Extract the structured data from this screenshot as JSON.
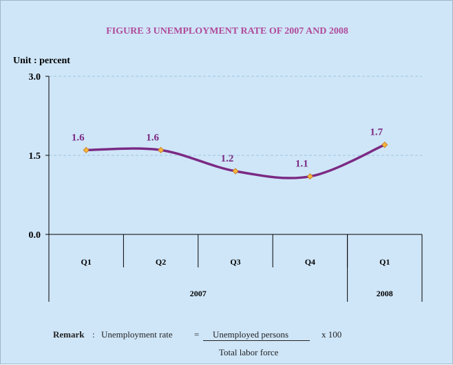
{
  "chart_data": {
    "type": "line",
    "title": "FIGURE 3 UNEMPLOYMENT RATE OF 2007 AND 2008",
    "unit_label": "Unit : percent",
    "categories": [
      "Q1",
      "Q2",
      "Q3",
      "Q4",
      "Q1"
    ],
    "groups": [
      {
        "label": "2007",
        "span": 4
      },
      {
        "label": "2008",
        "span": 1
      }
    ],
    "series": [
      {
        "values": [
          1.6,
          1.6,
          1.2,
          1.1,
          1.7
        ]
      }
    ],
    "data_labels": [
      "1.6",
      "1.6",
      "1.2",
      "1.1",
      "1.7"
    ],
    "y_ticks": [
      0.0,
      1.5,
      3.0
    ],
    "y_tick_labels": [
      "0.0",
      "1.5",
      "3.0"
    ],
    "ylim": [
      0,
      3
    ],
    "grid": true,
    "colors": {
      "line": "#7b2a84",
      "marker": "#f6b73c",
      "title": "#b04a9a",
      "label": "#7b2a84",
      "background": "#cfe6f8"
    }
  },
  "remark": {
    "label": "Remark",
    "colon": ":",
    "text": "Unemployment rate",
    "equals": "=",
    "numerator": "Unemployed persons",
    "multiplier": "x  100",
    "denominator": "Total labor force"
  }
}
